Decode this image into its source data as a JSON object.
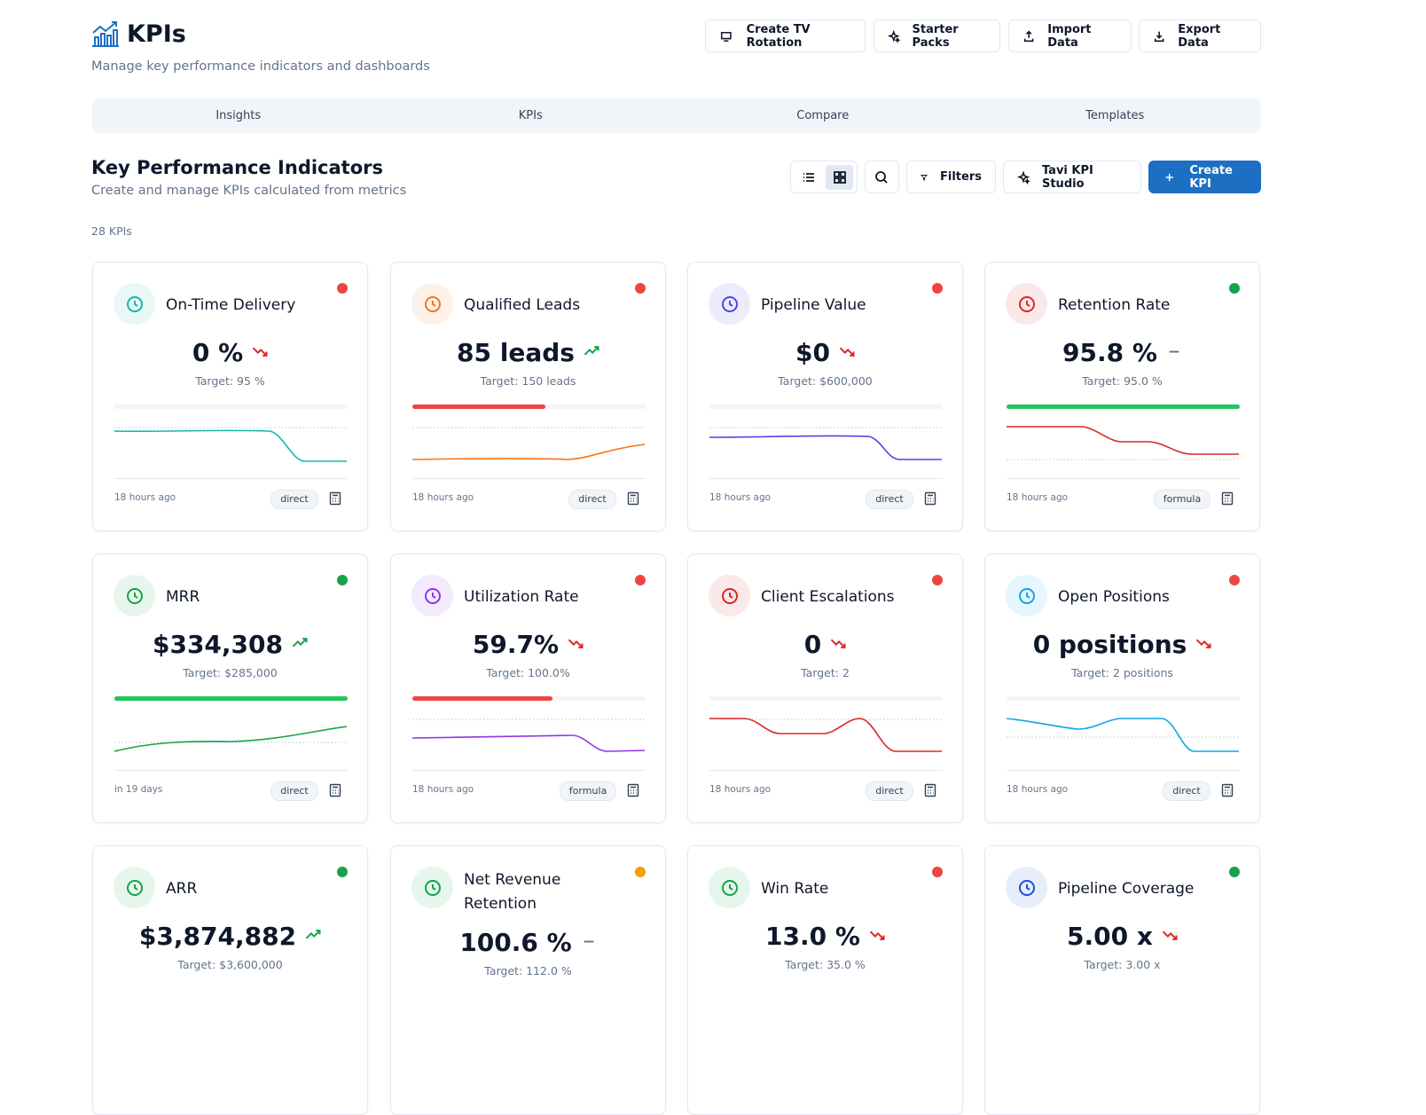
{
  "header": {
    "title": "KPIs",
    "subtitle": "Manage key performance indicators and dashboards",
    "buttons": [
      "Create TV Rotation",
      "Starter Packs",
      "Import Data",
      "Export Data"
    ]
  },
  "tabs": [
    "Insights",
    "KPIs",
    "Compare",
    "Templates"
  ],
  "section": {
    "title": "Key Performance Indicators",
    "subtitle": "Create and manage KPIs calculated from metrics",
    "buttons": [
      "Filters",
      "Tavi KPI Studio",
      "Create KPI"
    ],
    "count": "28 KPIs"
  },
  "cards": [
    {
      "name": "On-Time Delivery",
      "value": "0 %",
      "target": "Target: 95 %",
      "updated": "18 hours ago",
      "method": "direct",
      "status": "#ef4444",
      "trend": "down",
      "color": "#14b8a6"
    },
    {
      "name": "Qualified Leads",
      "value": "85 leads",
      "target": "Target: 150 leads",
      "updated": "18 hours ago",
      "method": "direct",
      "status": "#ef4444",
      "trend": "up",
      "color": "#f97316"
    },
    {
      "name": "Pipeline Value",
      "value": "$0",
      "target": "Target: $600,000",
      "updated": "18 hours ago",
      "method": "direct",
      "status": "#ef4444",
      "trend": "down",
      "color": "#4f46e5"
    },
    {
      "name": "Retention Rate",
      "value": "95.8 %",
      "target": "Target: 95.0 %",
      "updated": "18 hours ago",
      "method": "formula",
      "status": "#16a34a",
      "trend": "flat",
      "color": "#dc2626"
    },
    {
      "name": "MRR",
      "value": "$334,308",
      "target": "Target: $285,000",
      "updated": "in 19 days",
      "method": "direct",
      "status": "#16a34a",
      "trend": "up",
      "color": "#16a34a"
    },
    {
      "name": "Utilization Rate",
      "value": "59.7%",
      "target": "Target: 100.0%",
      "updated": "18 hours ago",
      "method": "formula",
      "status": "#ef4444",
      "trend": "down",
      "color": "#9333ea"
    },
    {
      "name": "Client Escalations",
      "value": "0",
      "target": "Target: 2",
      "updated": "18 hours ago",
      "method": "direct",
      "status": "#ef4444",
      "trend": "down",
      "color": "#dc2626"
    },
    {
      "name": "Open Positions",
      "value": "0 positions",
      "target": "Target: 2 positions",
      "updated": "18 hours ago",
      "method": "direct",
      "status": "#ef4444",
      "trend": "down",
      "color": "#0ea5e9"
    },
    {
      "name": "ARR",
      "value": "$3,874,882",
      "target": "Target: $3,600,000",
      "status": "#16a34a",
      "trend": "up",
      "color": "#16a34a"
    },
    {
      "name": "Net Revenue Retention",
      "value": "100.6 %",
      "target": "Target: 112.0 %",
      "status": "#f59e0b",
      "trend": "flat",
      "color": "#16a34a"
    },
    {
      "name": "Win Rate",
      "value": "13.0 %",
      "target": "Target: 35.0 %",
      "status": "#ef4444",
      "trend": "down",
      "color": "#16a34a"
    },
    {
      "name": "Pipeline Coverage",
      "value": "5.00 x",
      "target": "Target: 3.00 x",
      "status": "#16a34a",
      "trend": "down",
      "color": "#1d4ed8"
    }
  ]
}
